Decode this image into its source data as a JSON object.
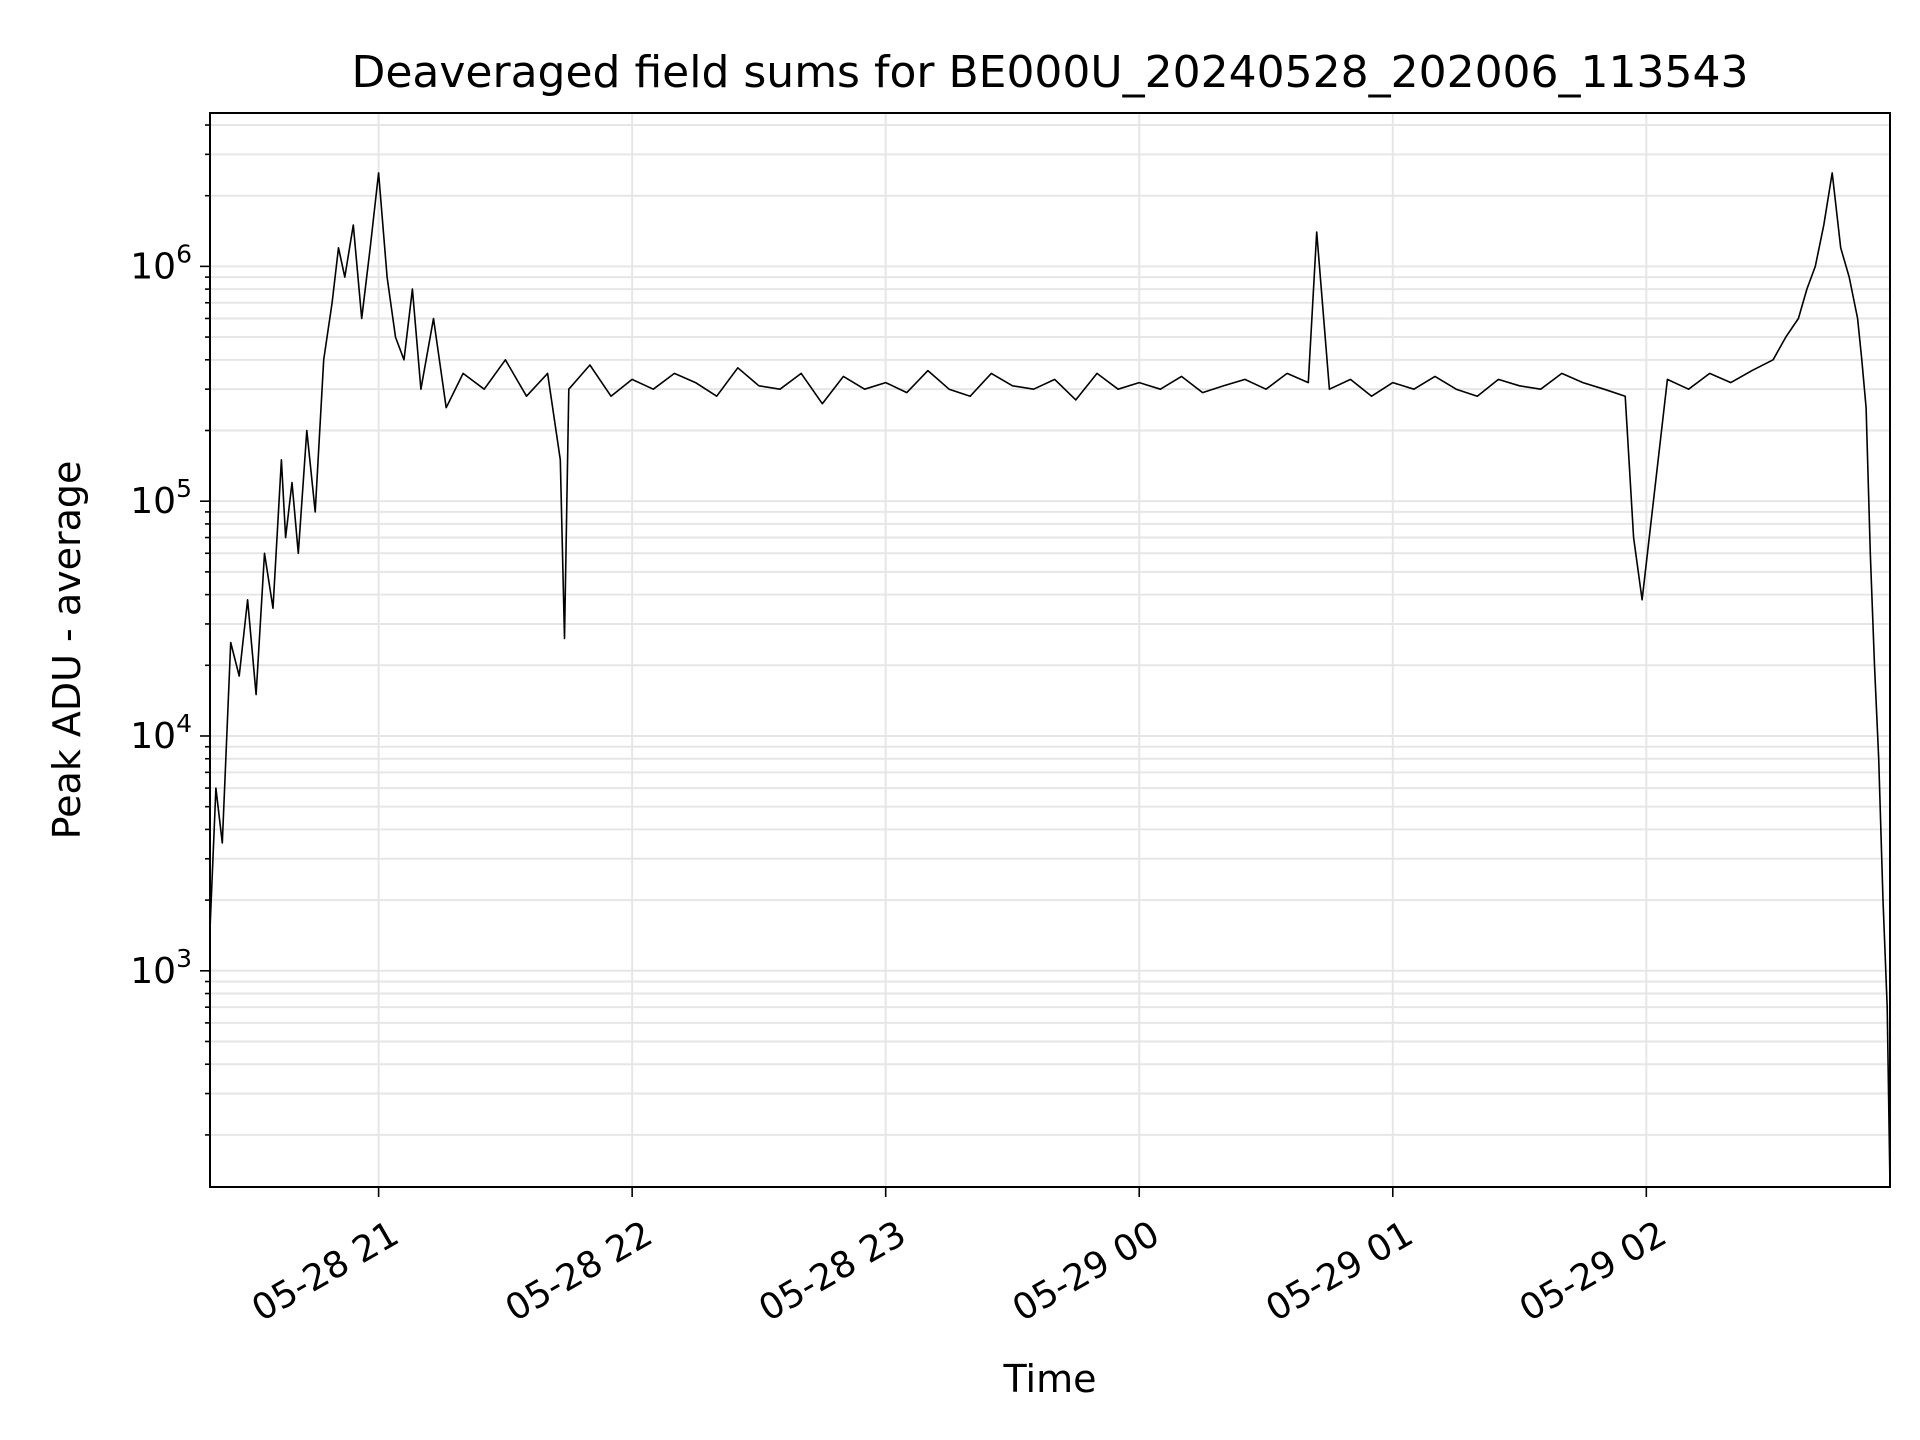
{
  "chart_data": {
    "type": "line",
    "title": "Deaveraged field sums for BE000U_20240528_202006_113543",
    "xlabel": "Time",
    "ylabel": "Peak ADU - average",
    "yscale": "log",
    "ylim": [
      120,
      4500000
    ],
    "xlim": [
      "2024-05-28 20:20:06",
      "2024-05-29 02:57:40"
    ],
    "grid": true,
    "line_color": "#000000",
    "grid_color": "#e6e6e6",
    "x_ticks": [
      {
        "t": "2024-05-28 21:00:00",
        "label": "05-28 21"
      },
      {
        "t": "2024-05-28 22:00:00",
        "label": "05-28 22"
      },
      {
        "t": "2024-05-28 23:00:00",
        "label": "05-28 23"
      },
      {
        "t": "2024-05-29 00:00:00",
        "label": "05-29 00"
      },
      {
        "t": "2024-05-29 01:00:00",
        "label": "05-29 01"
      },
      {
        "t": "2024-05-29 02:00:00",
        "label": "05-29 02"
      }
    ],
    "y_ticks": [
      {
        "value": 1000,
        "base": "10",
        "exp": "3"
      },
      {
        "value": 10000,
        "base": "10",
        "exp": "4"
      },
      {
        "value": 100000,
        "base": "10",
        "exp": "5"
      },
      {
        "value": 1000000,
        "base": "10",
        "exp": "6"
      }
    ],
    "series": [
      {
        "x": [
          "2024-05-28 20:20:06",
          "2024-05-28 20:21:30",
          "2024-05-28 20:23:00",
          "2024-05-28 20:25:00",
          "2024-05-28 20:27:00",
          "2024-05-28 20:29:00",
          "2024-05-28 20:31:00",
          "2024-05-28 20:33:00",
          "2024-05-28 20:35:00",
          "2024-05-28 20:37:00",
          "2024-05-28 20:38:00",
          "2024-05-28 20:39:30",
          "2024-05-28 20:41:00",
          "2024-05-28 20:43:00",
          "2024-05-28 20:45:00",
          "2024-05-28 20:47:00",
          "2024-05-28 20:49:00",
          "2024-05-28 20:50:30",
          "2024-05-28 20:52:00",
          "2024-05-28 20:54:00",
          "2024-05-28 20:56:00",
          "2024-05-28 20:58:00",
          "2024-05-28 21:00:00",
          "2024-05-28 21:02:00",
          "2024-05-28 21:04:00",
          "2024-05-28 21:06:00",
          "2024-05-28 21:08:00",
          "2024-05-28 21:10:00",
          "2024-05-28 21:13:00",
          "2024-05-28 21:16:00",
          "2024-05-28 21:20:00",
          "2024-05-28 21:25:00",
          "2024-05-28 21:30:00",
          "2024-05-28 21:35:00",
          "2024-05-28 21:40:00",
          "2024-05-28 21:43:00",
          "2024-05-28 21:44:00",
          "2024-05-28 21:45:00",
          "2024-05-28 21:50:00",
          "2024-05-28 21:55:00",
          "2024-05-28 22:00:00",
          "2024-05-28 22:05:00",
          "2024-05-28 22:10:00",
          "2024-05-28 22:15:00",
          "2024-05-28 22:20:00",
          "2024-05-28 22:25:00",
          "2024-05-28 22:30:00",
          "2024-05-28 22:35:00",
          "2024-05-28 22:40:00",
          "2024-05-28 22:45:00",
          "2024-05-28 22:50:00",
          "2024-05-28 22:55:00",
          "2024-05-28 23:00:00",
          "2024-05-28 23:05:00",
          "2024-05-28 23:10:00",
          "2024-05-28 23:15:00",
          "2024-05-28 23:20:00",
          "2024-05-28 23:25:00",
          "2024-05-28 23:30:00",
          "2024-05-28 23:35:00",
          "2024-05-28 23:40:00",
          "2024-05-28 23:45:00",
          "2024-05-28 23:50:00",
          "2024-05-28 23:55:00",
          "2024-05-29 00:00:00",
          "2024-05-29 00:05:00",
          "2024-05-29 00:10:00",
          "2024-05-29 00:15:00",
          "2024-05-29 00:20:00",
          "2024-05-29 00:25:00",
          "2024-05-29 00:30:00",
          "2024-05-29 00:35:00",
          "2024-05-29 00:40:00",
          "2024-05-29 00:42:00",
          "2024-05-29 00:45:00",
          "2024-05-29 00:50:00",
          "2024-05-29 00:55:00",
          "2024-05-29 01:00:00",
          "2024-05-29 01:05:00",
          "2024-05-29 01:10:00",
          "2024-05-29 01:15:00",
          "2024-05-29 01:20:00",
          "2024-05-29 01:25:00",
          "2024-05-29 01:30:00",
          "2024-05-29 01:35:00",
          "2024-05-29 01:40:00",
          "2024-05-29 01:45:00",
          "2024-05-29 01:50:00",
          "2024-05-29 01:55:00",
          "2024-05-29 01:57:00",
          "2024-05-29 01:59:00",
          "2024-05-29 02:05:00",
          "2024-05-29 02:10:00",
          "2024-05-29 02:15:00",
          "2024-05-29 02:20:00",
          "2024-05-29 02:25:00",
          "2024-05-29 02:30:00",
          "2024-05-29 02:33:00",
          "2024-05-29 02:36:00",
          "2024-05-29 02:38:00",
          "2024-05-29 02:40:00",
          "2024-05-29 02:42:00",
          "2024-05-29 02:44:00",
          "2024-05-29 02:46:00",
          "2024-05-29 02:48:00",
          "2024-05-29 02:50:00",
          "2024-05-29 02:51:00",
          "2024-05-29 02:52:00",
          "2024-05-29 02:53:00",
          "2024-05-29 02:54:00",
          "2024-05-29 02:55:00",
          "2024-05-29 02:56:00",
          "2024-05-29 02:57:00",
          "2024-05-29 02:57:40"
        ],
        "y": [
          1500,
          6000,
          3500,
          25000,
          18000,
          38000,
          15000,
          60000,
          35000,
          150000,
          70000,
          120000,
          60000,
          200000,
          90000,
          400000,
          700000,
          1200000,
          900000,
          1500000,
          600000,
          1200000,
          2500000,
          900000,
          500000,
          400000,
          800000,
          300000,
          600000,
          250000,
          350000,
          300000,
          400000,
          280000,
          350000,
          150000,
          26000,
          300000,
          380000,
          280000,
          330000,
          300000,
          350000,
          320000,
          280000,
          370000,
          310000,
          300000,
          350000,
          260000,
          340000,
          300000,
          320000,
          290000,
          360000,
          300000,
          280000,
          350000,
          310000,
          300000,
          330000,
          270000,
          350000,
          300000,
          320000,
          300000,
          340000,
          290000,
          310000,
          330000,
          300000,
          350000,
          320000,
          1400000,
          300000,
          330000,
          280000,
          320000,
          300000,
          340000,
          300000,
          280000,
          330000,
          310000,
          300000,
          350000,
          320000,
          300000,
          280000,
          70000,
          38000,
          330000,
          300000,
          350000,
          320000,
          360000,
          400000,
          500000,
          600000,
          800000,
          1000000,
          1500000,
          2500000,
          1200000,
          900000,
          600000,
          400000,
          250000,
          60000,
          20000,
          8000,
          2000,
          700,
          120
        ]
      }
    ]
  }
}
